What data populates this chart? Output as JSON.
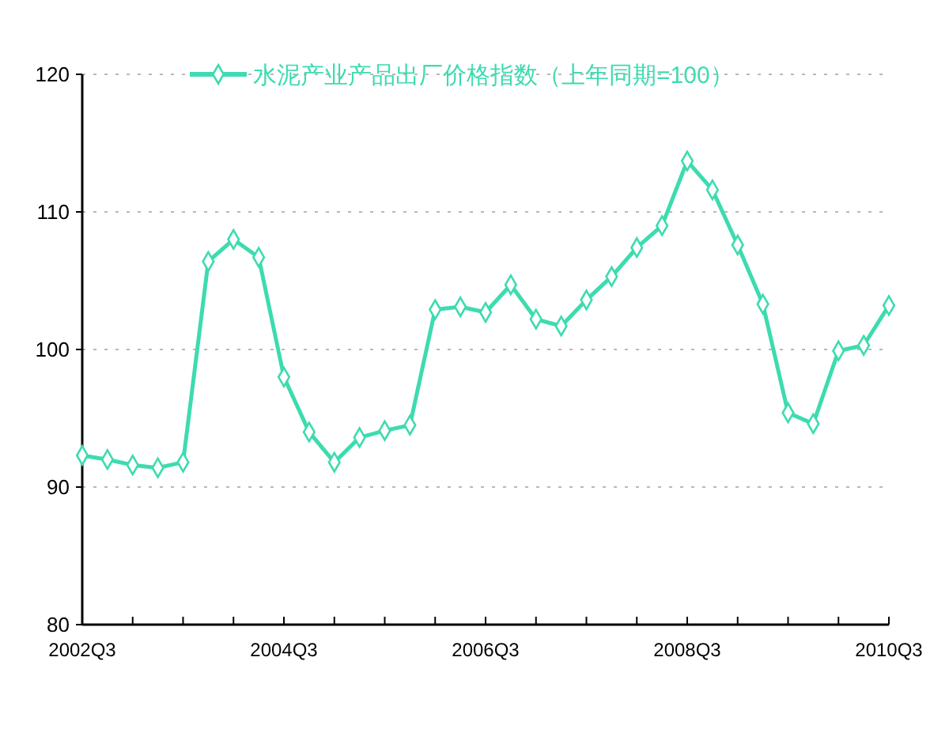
{
  "chart_data": {
    "type": "line",
    "categories": [
      "2002Q3",
      null,
      null,
      null,
      null,
      null,
      null,
      null,
      "2004Q3",
      null,
      null,
      null,
      null,
      null,
      null,
      null,
      "2006Q3",
      null,
      null,
      null,
      null,
      null,
      null,
      null,
      "2008Q3",
      null,
      null,
      null,
      null,
      null,
      null,
      null,
      "2010Q3"
    ],
    "series": [
      {
        "name": "水泥产业产品出厂价格指数（上年同期=100）",
        "color": "#3ddbb0",
        "values": [
          92.3,
          92.0,
          91.6,
          91.4,
          91.8,
          106.4,
          108.0,
          106.7,
          98.0,
          94.0,
          91.8,
          93.6,
          94.1,
          94.5,
          102.9,
          103.1,
          102.7,
          104.7,
          102.2,
          101.7,
          103.6,
          105.3,
          107.4,
          109.0,
          113.7,
          111.6,
          107.6,
          103.3,
          95.4,
          94.6,
          99.9,
          100.3,
          103.2
        ]
      }
    ],
    "ylim": [
      80,
      120
    ],
    "yticks": [
      80,
      90,
      100,
      110,
      120
    ],
    "grid": "y",
    "legend": "top",
    "marker": "diamond",
    "line_style": "solid"
  }
}
